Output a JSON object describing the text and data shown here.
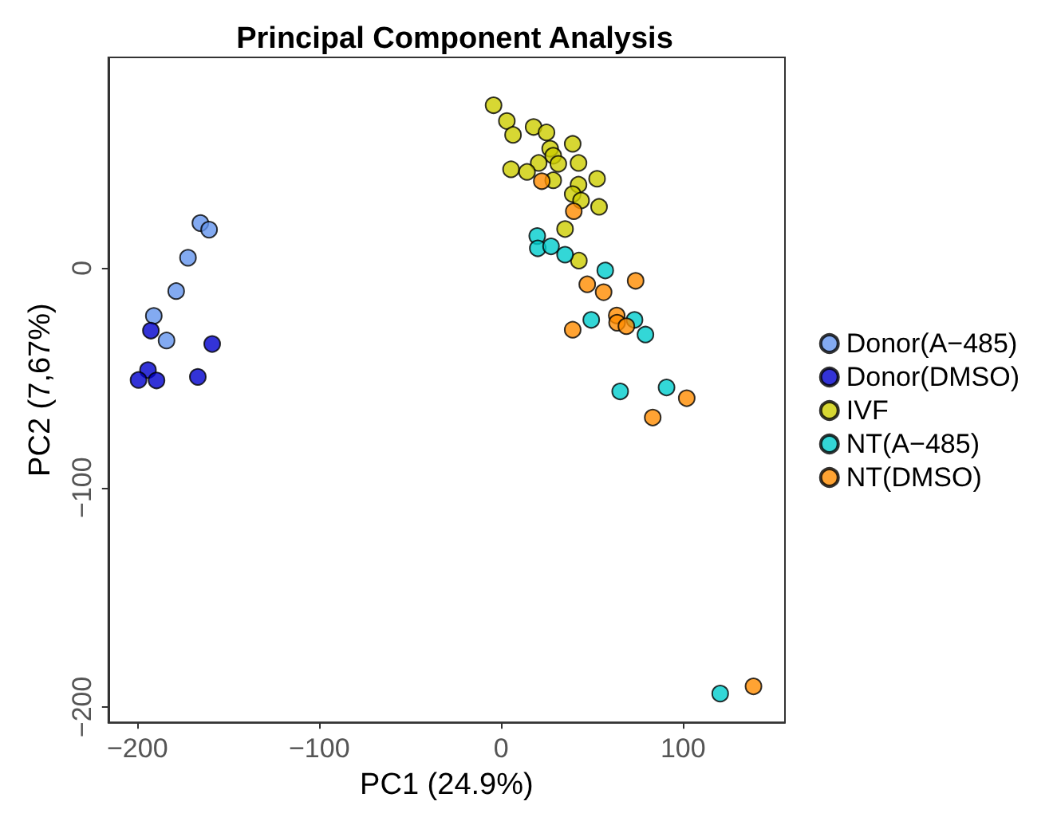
{
  "chart_data": {
    "type": "scatter",
    "title": "Principal Component Analysis",
    "xlabel": "PC1 (24.9%)",
    "ylabel": "PC2 (7,67%)",
    "xlim": [
      -216,
      156
    ],
    "ylim": [
      -207,
      96
    ],
    "xticks": [
      -200,
      -100,
      0,
      100
    ],
    "yticks": [
      -200,
      -100,
      0
    ],
    "grid": false,
    "legend": "right",
    "marker": "circle",
    "series": [
      {
        "name": "Donor(A−485)",
        "color": "#6495ed",
        "x": [
          -165.4,
          -160.6,
          -172.2,
          -178.7,
          -191,
          -184
        ],
        "values": [
          20.5,
          17.5,
          4.7,
          -10.5,
          -21.8,
          -33
        ]
      },
      {
        "name": "Donor(DMSO)",
        "color": "#0000cd",
        "x": [
          -192.6,
          -158.9,
          -194.2,
          -199.4,
          -189.5,
          -166.8
        ],
        "values": [
          -28.5,
          -34.6,
          -46.5,
          -51,
          -51.2,
          -49.6
        ]
      },
      {
        "name": "IVF",
        "color": "#cdcd00",
        "x": [
          -4.2,
          3.1,
          6.5,
          17.8,
          24.9,
          39.3,
          26.9,
          28.6,
          31.4,
          20.6,
          42.5,
          5.4,
          14.2,
          28.6,
          52.7,
          42.5,
          39.3,
          43.9,
          53.8,
          35.1,
          42.7
        ],
        "values": [
          74.2,
          67,
          60.7,
          64.3,
          61.8,
          56.6,
          54.4,
          51.2,
          47.5,
          47.9,
          47.9,
          45,
          43.8,
          40,
          40.7,
          38,
          33.7,
          30.8,
          27.9,
          17.8,
          3.4
        ]
      },
      {
        "name": "NT(A−485)",
        "color": "#00cdcd",
        "x": [
          19.8,
          20.1,
          27.4,
          35.1,
          57.2,
          49.5,
          73.3,
          79.3,
          65.4,
          90.9,
          120.4
        ],
        "values": [
          14.6,
          9,
          9.9,
          6.1,
          -1.1,
          -23.6,
          -23.6,
          -30.3,
          -56.2,
          -54.4,
          -193.9
        ]
      },
      {
        "name": "NT(DMSO)",
        "color": "#ff8c00",
        "x": [
          22.3,
          39.9,
          47.3,
          56.3,
          73.9,
          63.5,
          63.7,
          68.8,
          39.3,
          102,
          83.3,
          138.7
        ],
        "values": [
          39.6,
          25.9,
          -7.4,
          -11,
          -5.8,
          -21.6,
          -24.9,
          -26.5,
          -28.1,
          -59.3,
          -68.1,
          -190.6
        ]
      }
    ]
  }
}
